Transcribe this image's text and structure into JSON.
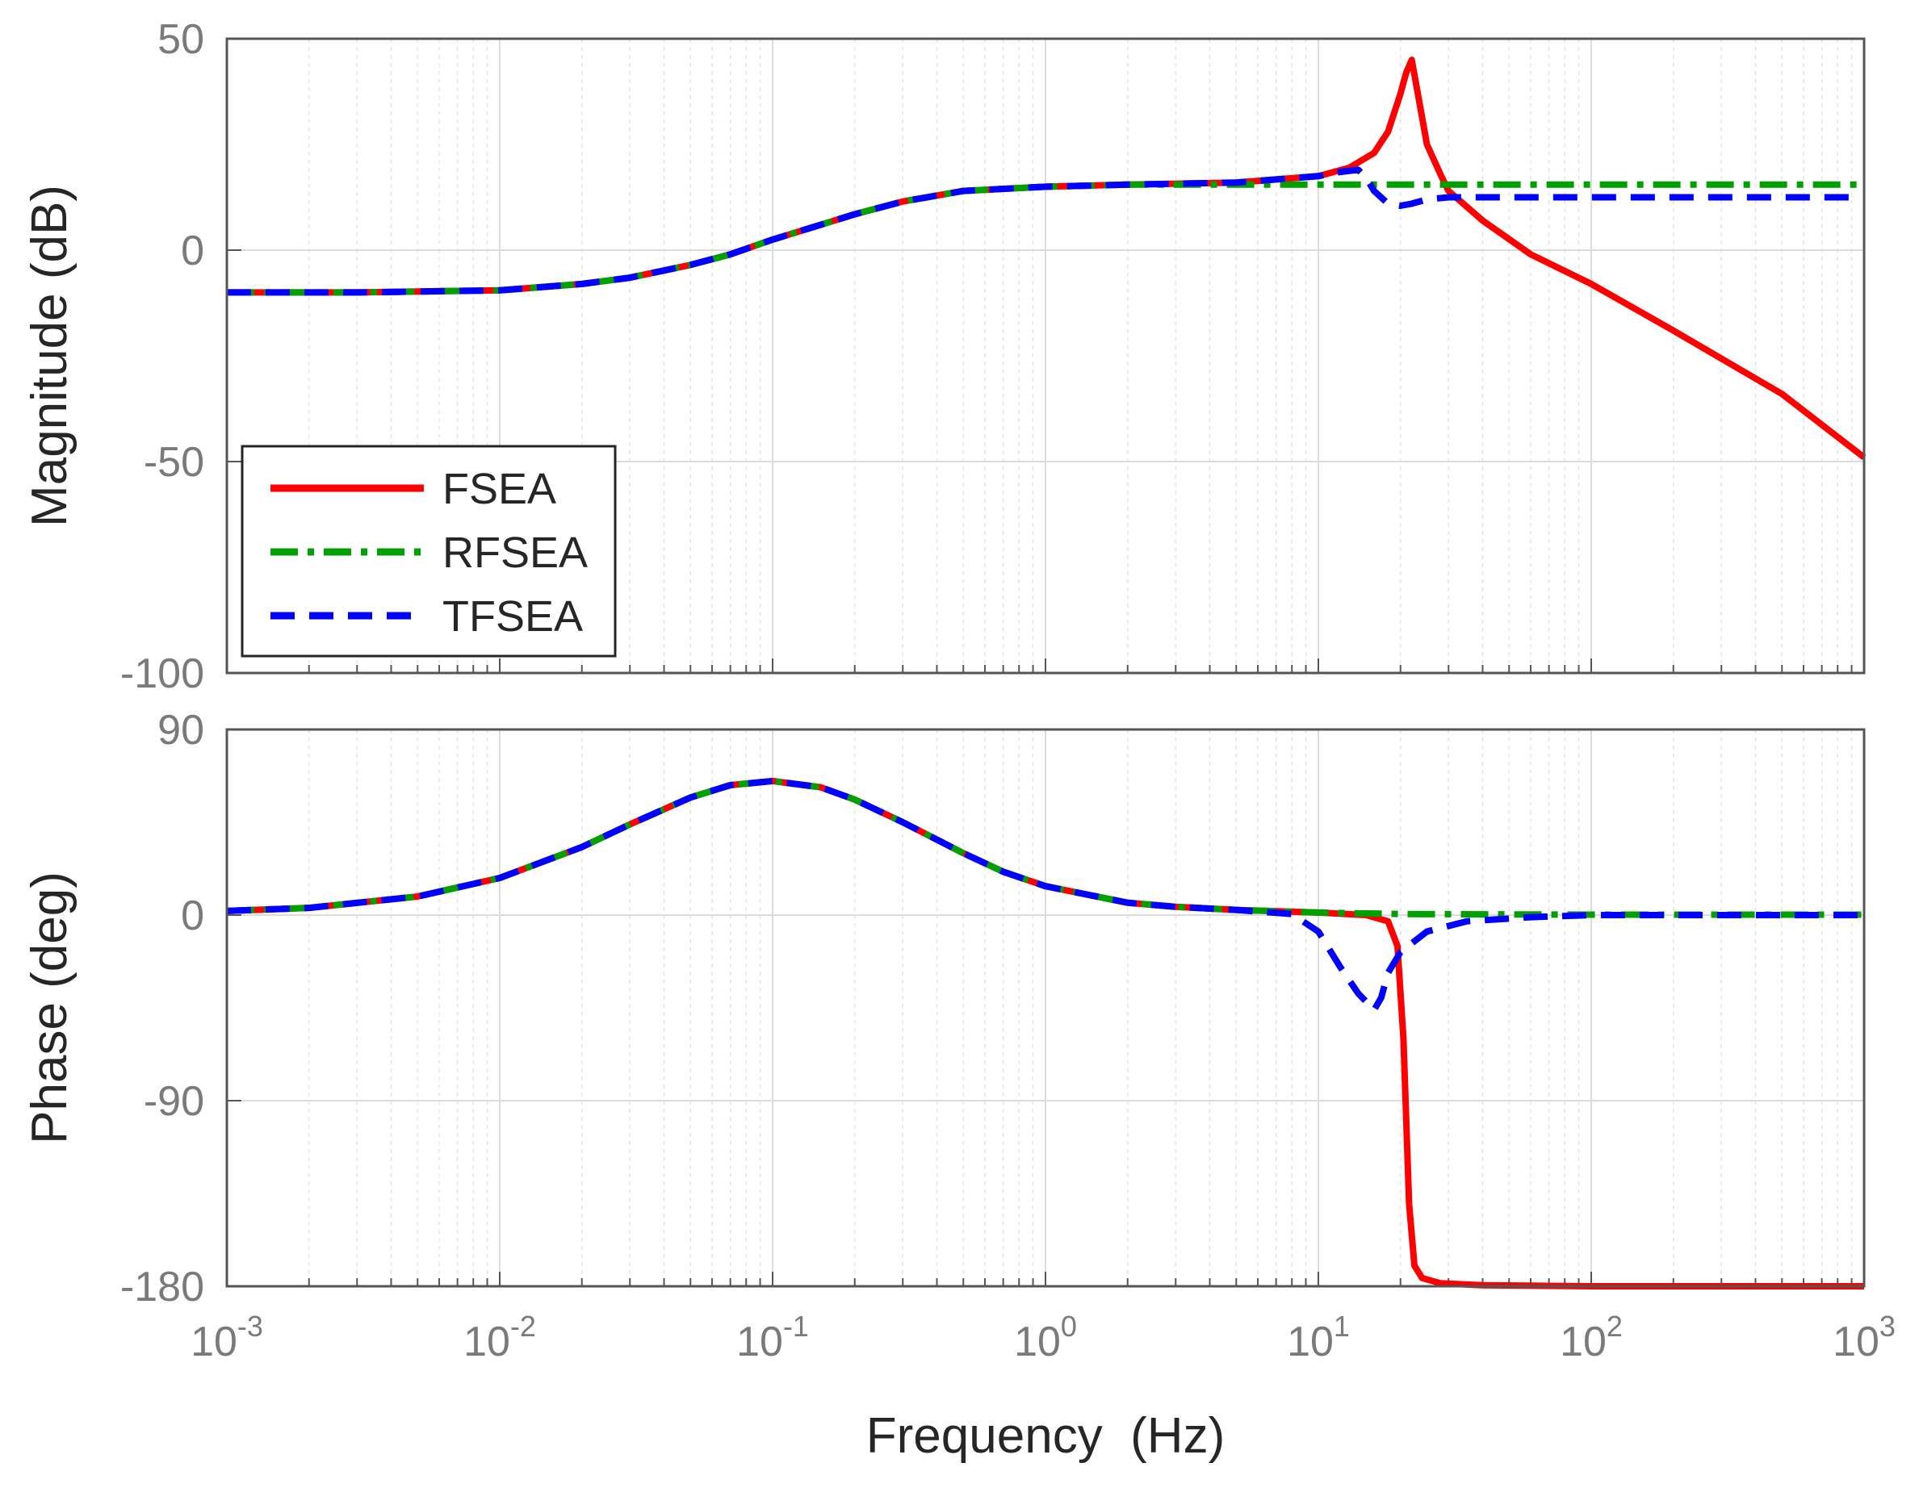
{
  "chart_data": {
    "type": "line",
    "xlabel": "Frequency  (Hz)",
    "x_ticks": [
      {
        "base": "10",
        "exp": "-3"
      },
      {
        "base": "10",
        "exp": "-2"
      },
      {
        "base": "10",
        "exp": "-1"
      },
      {
        "base": "10",
        "exp": "0"
      },
      {
        "base": "10",
        "exp": "1"
      },
      {
        "base": "10",
        "exp": "2"
      },
      {
        "base": "10",
        "exp": "3"
      }
    ],
    "x_exponents": [
      -3,
      -2,
      -1,
      0,
      1,
      2,
      3
    ],
    "xscale": "log",
    "xlim": [
      0.001,
      1000
    ],
    "grid": true,
    "legend": {
      "location": "lower-left of magnitude plot",
      "entries": [
        {
          "name": "FSEA",
          "color": "#ff0000",
          "style": "solid"
        },
        {
          "name": "RFSEA",
          "color": "#00a000",
          "style": "dash-dot"
        },
        {
          "name": "TFSEA",
          "color": "#0000ff",
          "style": "dashed"
        }
      ]
    },
    "subplots": [
      {
        "name": "magnitude",
        "ylabel": "Magnitude (dB)",
        "ylim": [
          -100,
          50
        ],
        "y_ticks": [
          "50",
          "0",
          "-50",
          "-100"
        ],
        "y_values": [
          50,
          0,
          -50,
          -100
        ],
        "series": [
          {
            "name": "FSEA",
            "x": [
              0.001,
              0.003,
              0.01,
              0.02,
              0.03,
              0.05,
              0.07,
              0.1,
              0.15,
              0.2,
              0.3,
              0.5,
              1,
              2,
              5,
              10,
              13,
              16,
              18,
              20,
              21,
              22,
              23,
              25,
              28,
              30,
              40,
              60,
              100,
              200,
              500,
              1000
            ],
            "y": [
              -10,
              -10,
              -9.5,
              -8,
              -6.5,
              -3.5,
              -1,
              2.5,
              6,
              8.5,
              11.5,
              14,
              15,
              15.5,
              16,
              17.5,
              19.5,
              23,
              28,
              37,
              42,
              45,
              38,
              25,
              18,
              14,
              7,
              -1,
              -8,
              -19,
              -34,
              -49
            ]
          },
          {
            "name": "RFSEA",
            "x": [
              0.001,
              0.003,
              0.01,
              0.02,
              0.03,
              0.05,
              0.07,
              0.1,
              0.15,
              0.2,
              0.3,
              0.5,
              1,
              2,
              5,
              10,
              20,
              50,
              100,
              1000
            ],
            "y": [
              -10,
              -10,
              -9.5,
              -8,
              -6.5,
              -3.5,
              -1,
              2.5,
              6,
              8.5,
              11.5,
              14,
              15,
              15.5,
              15.5,
              15.5,
              15.5,
              15.5,
              15.5,
              15.5
            ]
          },
          {
            "name": "TFSEA",
            "x": [
              0.001,
              0.003,
              0.01,
              0.02,
              0.03,
              0.05,
              0.07,
              0.1,
              0.15,
              0.2,
              0.3,
              0.5,
              1,
              2,
              5,
              10,
              12,
              14,
              15,
              16,
              18,
              20,
              22,
              25,
              30,
              50,
              100,
              1000
            ],
            "y": [
              -10,
              -10,
              -9.5,
              -8,
              -6.5,
              -3.5,
              -1,
              2.5,
              6,
              8.5,
              11.5,
              14,
              15,
              15.5,
              16,
              17.5,
              18.5,
              19,
              17,
              14,
              11,
              10.5,
              11,
              12,
              12.5,
              12.5,
              12.5,
              12.5
            ]
          }
        ]
      },
      {
        "name": "phase",
        "ylabel": "Phase (deg)",
        "ylim": [
          -180,
          90
        ],
        "y_ticks": [
          "90",
          "0",
          "-90",
          "-180"
        ],
        "y_values": [
          90,
          0,
          -90,
          -180
        ],
        "series": [
          {
            "name": "FSEA",
            "x": [
              0.001,
              0.002,
              0.005,
              0.01,
              0.02,
              0.03,
              0.05,
              0.07,
              0.1,
              0.15,
              0.2,
              0.3,
              0.5,
              0.7,
              1,
              2,
              3,
              5,
              10,
              15,
              18,
              19.5,
              20.5,
              21.5,
              22.5,
              24,
              28,
              40,
              100,
              1000
            ],
            "y": [
              2,
              3.5,
              9,
              18,
              33,
              44,
              57,
              63,
              65,
              62,
              56,
              45,
              30,
              21,
              14,
              6,
              4,
              2.5,
              1.2,
              0,
              -3,
              -15,
              -60,
              -140,
              -170,
              -176,
              -178.5,
              -179.5,
              -180,
              -180
            ]
          },
          {
            "name": "RFSEA",
            "x": [
              0.001,
              0.002,
              0.005,
              0.01,
              0.02,
              0.03,
              0.05,
              0.07,
              0.1,
              0.15,
              0.2,
              0.3,
              0.5,
              0.7,
              1,
              2,
              3,
              5,
              10,
              20,
              50,
              100,
              1000
            ],
            "y": [
              2,
              3.5,
              9,
              18,
              33,
              44,
              57,
              63,
              65,
              62,
              56,
              45,
              30,
              21,
              14,
              6,
              4,
              2.5,
              1.2,
              0.5,
              0.3,
              0.2,
              0.2
            ]
          },
          {
            "name": "TFSEA",
            "x": [
              0.001,
              0.002,
              0.005,
              0.01,
              0.02,
              0.03,
              0.05,
              0.07,
              0.1,
              0.15,
              0.2,
              0.3,
              0.5,
              0.7,
              1,
              2,
              3,
              5,
              8,
              10,
              12,
              14,
              16,
              17,
              18,
              20,
              25,
              35,
              60,
              100,
              1000
            ],
            "y": [
              2,
              3.5,
              9,
              18,
              33,
              44,
              57,
              63,
              65,
              62,
              56,
              45,
              30,
              21,
              14,
              6,
              4,
              2.5,
              0.5,
              -8,
              -25,
              -38,
              -46,
              -40,
              -28,
              -18,
              -8,
              -3,
              -1,
              0,
              0
            ]
          }
        ]
      }
    ]
  }
}
